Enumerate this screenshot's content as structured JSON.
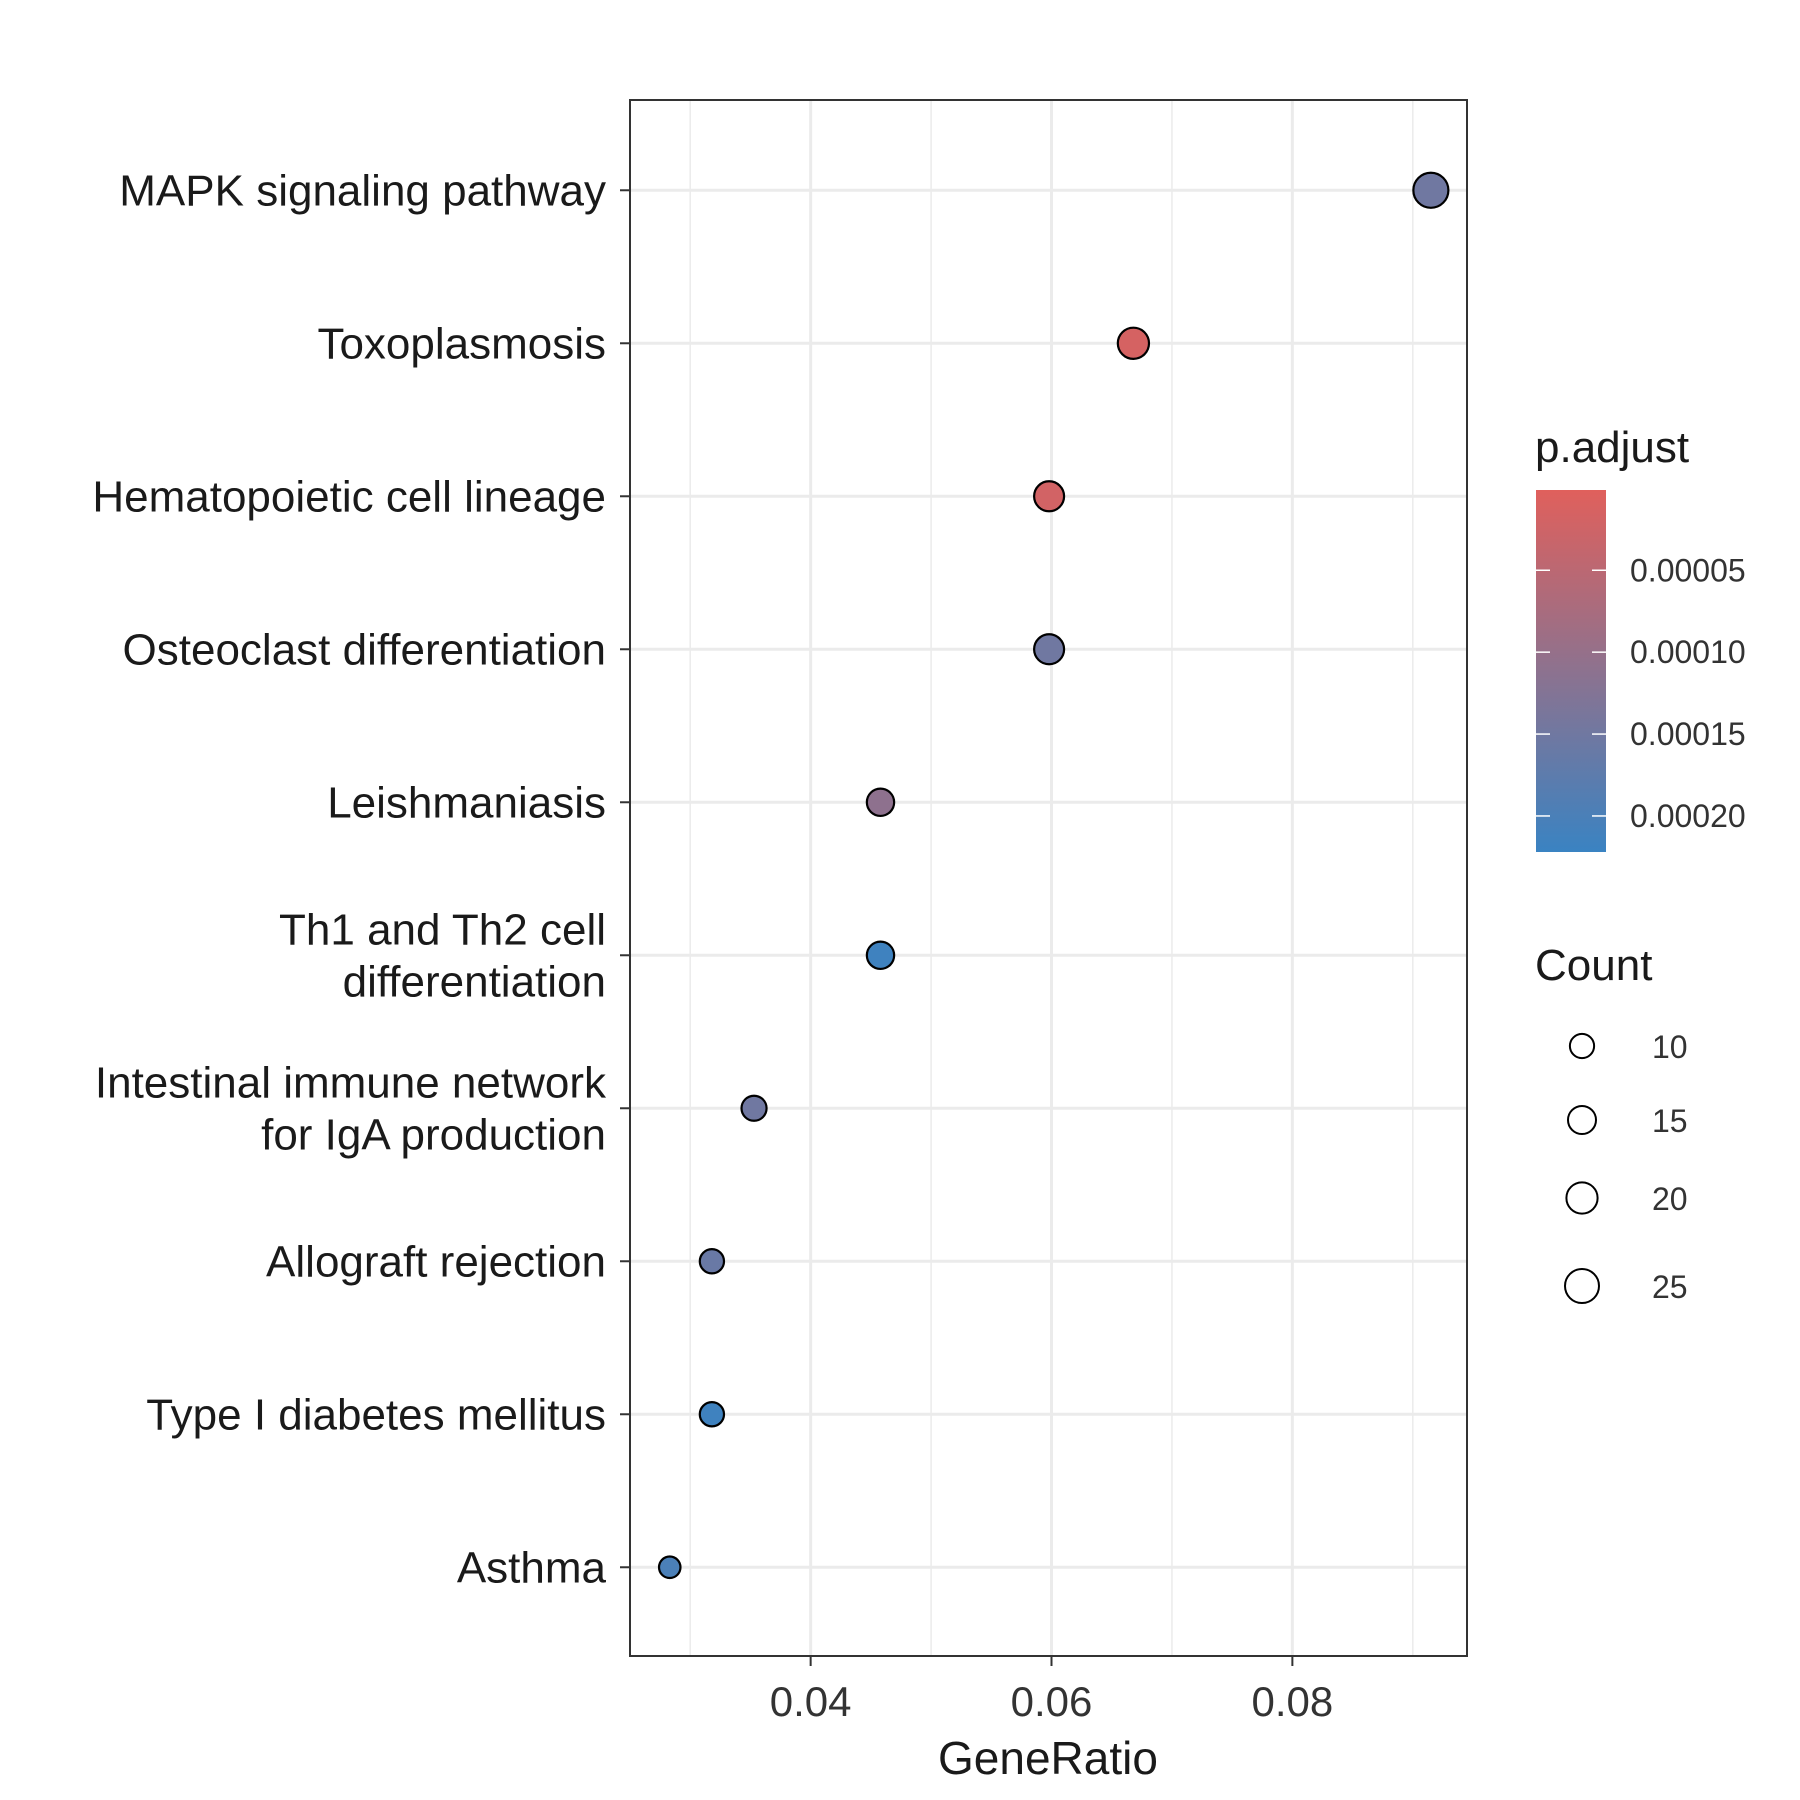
{
  "chart_data": {
    "type": "scatter",
    "title": "",
    "xlabel": "GeneRatio",
    "ylabel": "",
    "xlim": [
      0.025,
      0.0945
    ],
    "xticks": [
      0.04,
      0.06,
      0.08
    ],
    "xtick_labels": [
      "0.04",
      "0.06",
      "0.08"
    ],
    "grid": true,
    "points": [
      {
        "label": [
          "MAPK signaling pathway"
        ],
        "gene_ratio": 0.0915,
        "count": 27,
        "p_adjust": 0.00015
      },
      {
        "label": [
          "Toxoplasmosis"
        ],
        "gene_ratio": 0.0668,
        "count": 20,
        "p_adjust": 1.5e-05
      },
      {
        "label": [
          "Hematopoietic cell lineage"
        ],
        "gene_ratio": 0.0598,
        "count": 18,
        "p_adjust": 2e-05
      },
      {
        "label": [
          "Osteoclast differentiation"
        ],
        "gene_ratio": 0.0598,
        "count": 18,
        "p_adjust": 0.00015
      },
      {
        "label": [
          "Leishmaniasis"
        ],
        "gene_ratio": 0.0458,
        "count": 14,
        "p_adjust": 0.00011
      },
      {
        "label": [
          "Th1 and Th2 cell",
          "differentiation"
        ],
        "gene_ratio": 0.0458,
        "count": 14,
        "p_adjust": 0.000215
      },
      {
        "label": [
          "Intestinal immune network",
          "for IgA production"
        ],
        "gene_ratio": 0.0353,
        "count": 11,
        "p_adjust": 0.00015
      },
      {
        "label": [
          "Allograft rejection"
        ],
        "gene_ratio": 0.0318,
        "count": 10,
        "p_adjust": 0.00016
      },
      {
        "label": [
          "Type I diabetes mellitus"
        ],
        "gene_ratio": 0.0318,
        "count": 10,
        "p_adjust": 0.000215
      },
      {
        "label": [
          "Asthma"
        ],
        "gene_ratio": 0.0283,
        "count": 7,
        "p_adjust": 0.0002
      }
    ],
    "color_legend": {
      "title": "p.adjust",
      "range": [
        1e-06,
        0.000222
      ],
      "ticks": [
        5e-05,
        0.0001,
        0.00015,
        0.0002
      ],
      "tick_labels": [
        "0.00005",
        "0.00010",
        "0.00015",
        "0.00020"
      ],
      "low_color": "#e0605c",
      "high_color": "#3a83c2"
    },
    "size_legend": {
      "title": "Count",
      "values": [
        10,
        15,
        20,
        25
      ],
      "labels": [
        "10",
        "15",
        "20",
        "25"
      ]
    },
    "legend_position": "right",
    "point_outline_color": "#000000"
  }
}
